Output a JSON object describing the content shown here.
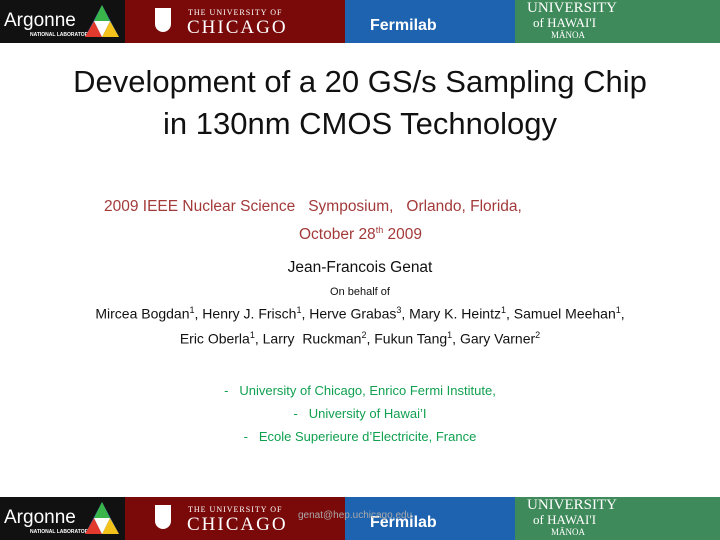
{
  "banner": {
    "argonne": "Argonne",
    "argonne_sub": "NATIONAL LABORATORY",
    "chicago_top": "THE UNIVERSITY OF",
    "chicago": "CHICAGO",
    "fermilab": "Fermilab",
    "hawaii_top": "UNIVERSITY",
    "hawaii_mid": "of HAWAI'I",
    "hawaii_bottom": "MĀNOA"
  },
  "title": [
    "Development of a 20 GS/s Sampling Chip",
    "in 130nm CMOS Technology"
  ],
  "conference": {
    "line1": "2009 IEEE Nuclear Science   Symposium,   Orlando, Florida,",
    "line2": "October 28",
    "line2_sup": "th",
    "line2_end": " 2009"
  },
  "presenter": "Jean-Francois Genat",
  "on_behalf": "On behalf of",
  "authors": [
    [
      {
        "text": "Mircea Bogdan",
        "sup": "1"
      },
      {
        "text": ", Henry J. Frisch",
        "sup": "1"
      },
      {
        "text": ", Herve Grabas",
        "sup": "3"
      },
      {
        "text": ", Mary K. Heintz",
        "sup": "1"
      },
      {
        "text": ", Samuel Meehan",
        "sup": "1"
      },
      {
        "text": ","
      }
    ],
    [
      {
        "text": "Eric Oberla",
        "sup": "1"
      },
      {
        "text": ", Larry  Ruckman",
        "sup": "2"
      },
      {
        "text": ", Fukun Tang",
        "sup": "1"
      },
      {
        "text": ", Gary Varner",
        "sup": "2"
      }
    ]
  ],
  "affiliations": [
    "-   University of Chicago, Enrico Fermi Institute,",
    "-   University of Hawai’I",
    "-   Ecole Superieure d’Electricite, France"
  ],
  "footer": {
    "email": "genat@hep.uchicago.edu"
  }
}
